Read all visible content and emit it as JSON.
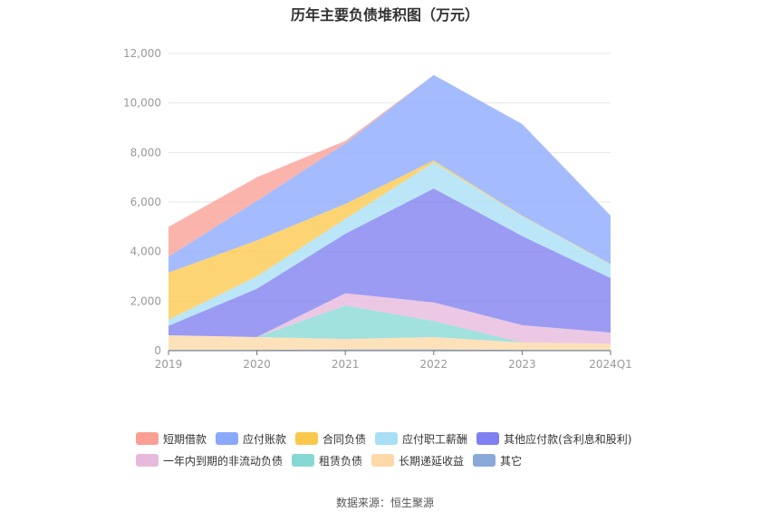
{
  "title": "历年主要负债堆积图（万元）",
  "source_note": "数据来源：恒生聚源",
  "chart_data": {
    "type": "area",
    "stacked": true,
    "categories": [
      "2019",
      "2020",
      "2021",
      "2022",
      "2023",
      "2024Q1"
    ],
    "ylim": [
      0,
      12000
    ],
    "yticks": [
      "0",
      "2,000",
      "4,000",
      "6,000",
      "8,000",
      "10,000",
      "12,000"
    ],
    "ytick_values": [
      0,
      2000,
      4000,
      6000,
      8000,
      10000,
      12000
    ],
    "grid": true,
    "legend_position": "bottom",
    "series": [
      {
        "name": "其它",
        "color": "#8aa9d9",
        "values": [
          30,
          30,
          50,
          50,
          30,
          30
        ]
      },
      {
        "name": "长期递延收益",
        "color": "#fdd9a8",
        "values": [
          590,
          520,
          420,
          500,
          300,
          250
        ]
      },
      {
        "name": "租赁负债",
        "color": "#86d8d5",
        "values": [
          0,
          0,
          1350,
          650,
          0,
          0
        ]
      },
      {
        "name": "一年内到期的非流动负债",
        "color": "#e7b9dc",
        "values": [
          0,
          0,
          500,
          750,
          700,
          450
        ]
      },
      {
        "name": "其他应付款(含利息和股利)",
        "color": "#7f7ff0",
        "values": [
          380,
          1950,
          2400,
          4600,
          3600,
          2200
        ]
      },
      {
        "name": "应付职工薪酬",
        "color": "#a8dff5",
        "values": [
          250,
          500,
          600,
          1050,
          800,
          550
        ]
      },
      {
        "name": "合同负债",
        "color": "#fcc84c",
        "values": [
          1900,
          1450,
          600,
          80,
          20,
          20
        ]
      },
      {
        "name": "应付账款",
        "color": "#8aa9fc",
        "values": [
          650,
          1600,
          2450,
          3450,
          3700,
          1950
        ]
      },
      {
        "name": "短期借款",
        "color": "#fa9f95",
        "values": [
          1200,
          950,
          100,
          0,
          0,
          0
        ]
      }
    ],
    "legend_rows": [
      [
        "短期借款",
        "应付账款",
        "合同负债",
        "应付职工薪酬",
        "其他应付款(含利息和股利)"
      ],
      [
        "一年内到期的非流动负债",
        "租赁负债",
        "长期递延收益",
        "其它"
      ]
    ]
  }
}
